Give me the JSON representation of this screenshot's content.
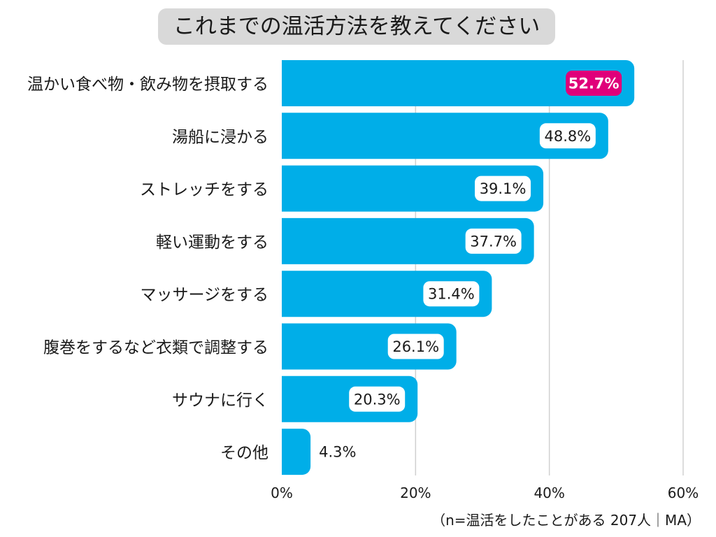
{
  "chart_data": {
    "type": "bar",
    "orientation": "horizontal",
    "title": "これまでの温活方法を教えてください",
    "categories": [
      "温かい食べ物・飲み物を摂取する",
      "湯船に浸かる",
      "ストレッチをする",
      "軽い運動をする",
      "マッサージをする",
      "腹巻をするなど衣類で調整する",
      "サウナに行く",
      "その他"
    ],
    "values": [
      52.7,
      48.8,
      39.1,
      37.7,
      31.4,
      26.1,
      20.3,
      4.3
    ],
    "value_labels": [
      "52.7%",
      "48.8%",
      "39.1%",
      "37.7%",
      "31.4%",
      "26.1%",
      "20.3%",
      "4.3%"
    ],
    "xlim": [
      0,
      60
    ],
    "xticks": [
      0,
      20,
      40,
      60
    ],
    "xtick_labels": [
      "0%",
      "20%",
      "40%",
      "60%"
    ],
    "grid": true,
    "note": "（n=温活をしたことがある 207人｜MA）",
    "colors": {
      "bar": "#00aee8",
      "highlight_label_bg": "#e0007a",
      "label_bg": "#ffffff",
      "grid": "#d0d0d0",
      "title_bg": "#d9d9d9"
    }
  }
}
